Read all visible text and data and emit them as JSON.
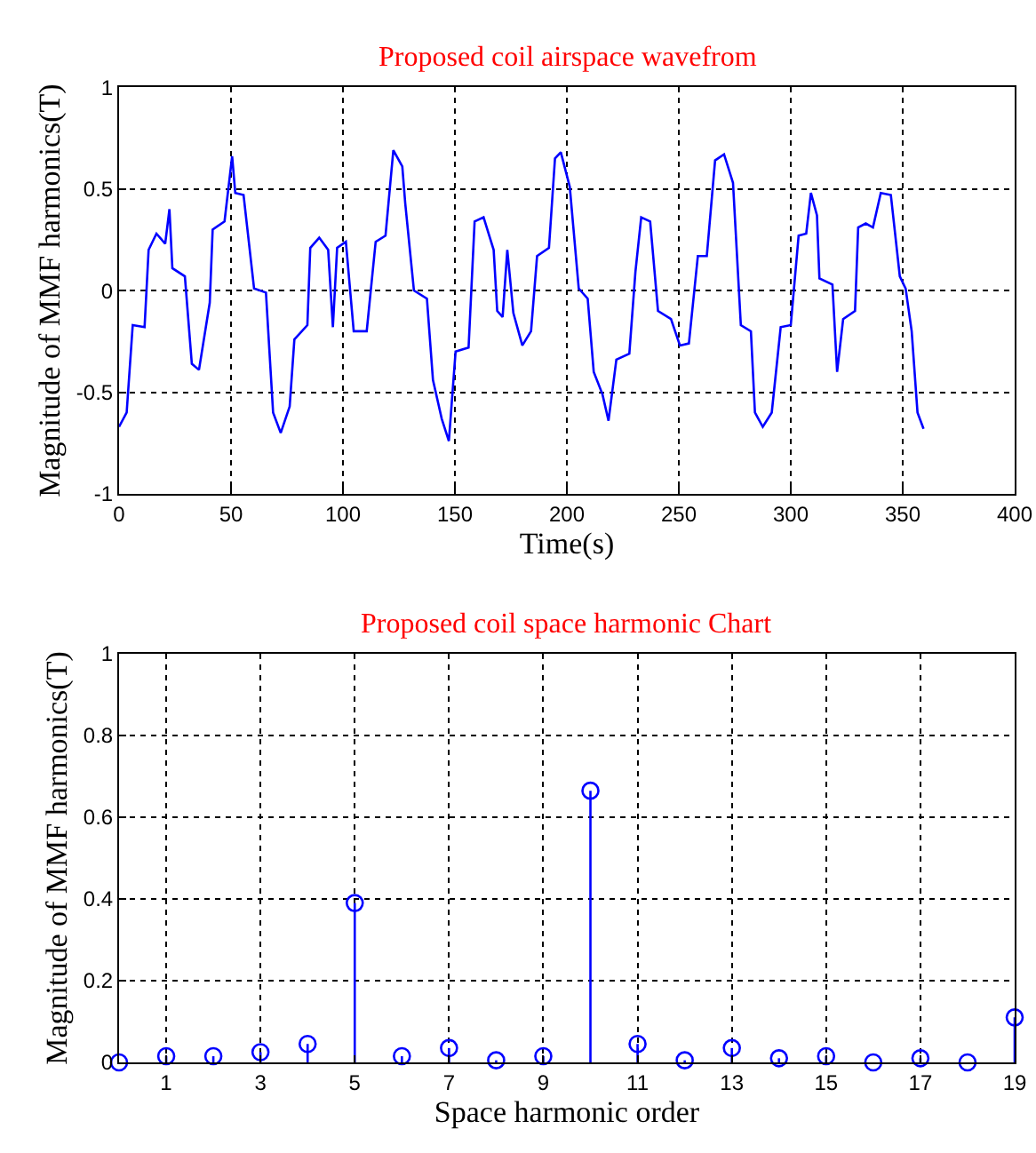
{
  "chart_data": [
    {
      "type": "line",
      "title": "Proposed coil airspace wavefrom",
      "xlabel": "Time(s)",
      "ylabel": "Magnitude of MMF harmonics(T)",
      "xlim": [
        0,
        400
      ],
      "xticks": [
        0,
        50,
        100,
        150,
        200,
        250,
        300,
        350,
        400
      ],
      "ylim": [
        -1,
        1
      ],
      "yticks": [
        -1,
        -0.5,
        0,
        0.5,
        1
      ],
      "grid": true,
      "line_style": "solid",
      "series": [
        {
          "color": "#0000ff",
          "x": [
            0,
            3.4,
            6.1,
            11.4,
            13.2,
            16.7,
            20.6,
            22.5,
            23.8,
            29.4,
            32.5,
            35.7,
            40.5,
            41.8,
            47.1,
            50.5,
            51.9,
            55.6,
            60.3,
            65.6,
            68.8,
            72.2,
            76.2,
            78.3,
            84.1,
            85.4,
            89.4,
            93.4,
            95.5,
            97.4,
            101.3,
            104.8,
            110.6,
            114.6,
            119,
            122.5,
            126.5,
            127.8,
            131.7,
            137.5,
            140.2,
            144.1,
            147.3,
            150.3,
            156.1,
            158.8,
            162.8,
            167.3,
            168.9,
            171.3,
            173.4,
            176.1,
            180.1,
            184,
            186.7,
            192,
            194.7,
            197.3,
            201.3,
            205.3,
            209.3,
            212,
            215.9,
            218.6,
            222.1,
            227.9,
            230.6,
            233.2,
            237.2,
            240.7,
            246.5,
            250.5,
            254.5,
            258.5,
            262.5,
            266.2,
            270.2,
            274.2,
            277.7,
            282.2,
            284,
            287.5,
            291.5,
            295.5,
            300,
            303.5,
            306.9,
            309,
            311.7,
            312.8,
            318.6,
            320.7,
            323.4,
            328.7,
            330.1,
            333.5,
            336.7,
            340.2,
            344.7,
            348.7,
            351.3,
            354,
            356.6,
            359.3
          ],
          "values": [
            -0.67,
            -0.6,
            -0.17,
            -0.18,
            0.2,
            0.28,
            0.23,
            0.4,
            0.11,
            0.07,
            -0.36,
            -0.39,
            -0.06,
            0.3,
            0.34,
            0.66,
            0.48,
            0.47,
            0.01,
            -0.01,
            -0.6,
            -0.7,
            -0.57,
            -0.24,
            -0.17,
            0.21,
            0.26,
            0.2,
            -0.18,
            0.21,
            0.24,
            -0.2,
            -0.2,
            0.24,
            0.27,
            0.69,
            0.61,
            0.43,
            0.0,
            -0.04,
            -0.44,
            -0.63,
            -0.74,
            -0.3,
            -0.28,
            0.34,
            0.36,
            0.2,
            -0.1,
            -0.13,
            0.2,
            -0.11,
            -0.27,
            -0.2,
            0.17,
            0.21,
            0.65,
            0.68,
            0.51,
            0.01,
            -0.04,
            -0.4,
            -0.51,
            -0.64,
            -0.34,
            -0.31,
            0.09,
            0.36,
            0.34,
            -0.1,
            -0.14,
            -0.27,
            -0.26,
            0.17,
            0.17,
            0.64,
            0.67,
            0.53,
            -0.17,
            -0.2,
            -0.6,
            -0.67,
            -0.6,
            -0.18,
            -0.17,
            0.27,
            0.28,
            0.48,
            0.37,
            0.06,
            0.03,
            -0.4,
            -0.14,
            -0.1,
            0.31,
            0.33,
            0.31,
            0.48,
            0.47,
            0.07,
            0.01,
            -0.2,
            -0.6,
            -0.68
          ]
        }
      ]
    },
    {
      "type": "lollipop",
      "title": "Proposed coil space harmonic Chart",
      "xlabel": "Space harmonic order",
      "ylabel": "Magnitude of MMF harmonics(T)",
      "xlim": [
        0,
        19
      ],
      "xticks": [
        1,
        3,
        5,
        7,
        9,
        11,
        13,
        15,
        17,
        19
      ],
      "ylim": [
        0,
        1
      ],
      "yticks": [
        0,
        0.2,
        0.4,
        0.6,
        0.8,
        1
      ],
      "grid": true,
      "marker": "circle",
      "x": [
        0,
        1,
        2,
        3,
        4,
        5,
        6,
        7,
        8,
        9,
        10,
        11,
        12,
        13,
        14,
        15,
        16,
        17,
        18,
        19
      ],
      "series": [
        {
          "color": "#0000ff",
          "values": [
            0,
            0.015,
            0.015,
            0.025,
            0.045,
            0.39,
            0.015,
            0.035,
            0.005,
            0.015,
            0.665,
            0.045,
            0.005,
            0.035,
            0.01,
            0.015,
            0,
            0.01,
            0,
            0.11
          ]
        }
      ]
    }
  ]
}
